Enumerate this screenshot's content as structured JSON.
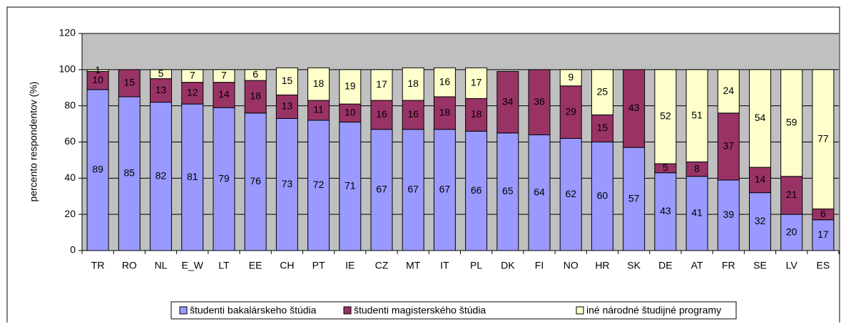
{
  "chart_data": {
    "type": "stacked_bar",
    "y_label": "percento respondentov (%)",
    "categories": [
      "TR",
      "RO",
      "NL",
      "E_W",
      "LT",
      "EE",
      "CH",
      "PT",
      "IE",
      "CZ",
      "MT",
      "IT",
      "PL",
      "DK",
      "FI",
      "NO",
      "HR",
      "SK",
      "DE",
      "AT",
      "FR",
      "SE",
      "LV",
      "ES"
    ],
    "series": [
      {
        "name": "študenti bakalárskeho štúdia",
        "color": "#9999ff",
        "values": [
          89,
          85,
          82,
          81,
          79,
          76,
          73,
          72,
          71,
          67,
          67,
          67,
          66,
          65,
          64,
          62,
          60,
          57,
          43,
          41,
          39,
          32,
          20,
          17
        ]
      },
      {
        "name": "študenti magisterského štúdia",
        "color": "#993366",
        "values": [
          10,
          15,
          13,
          12,
          14,
          18,
          13,
          11,
          10,
          16,
          16,
          18,
          18,
          34,
          36,
          29,
          15,
          43,
          5,
          8,
          37,
          14,
          21,
          6
        ]
      },
      {
        "name": "iné národné študijné programy",
        "color": "#ffffcc",
        "values": [
          1,
          null,
          5,
          7,
          7,
          6,
          15,
          18,
          19,
          17,
          18,
          16,
          17,
          null,
          null,
          9,
          25,
          null,
          52,
          51,
          24,
          54,
          59,
          77
        ]
      }
    ],
    "ylim": [
      0,
      120
    ],
    "yticks": [
      0,
      20,
      40,
      60,
      80,
      100,
      120
    ],
    "grid": true,
    "plot_background": "#c0c0c0",
    "legend": "bottom"
  }
}
